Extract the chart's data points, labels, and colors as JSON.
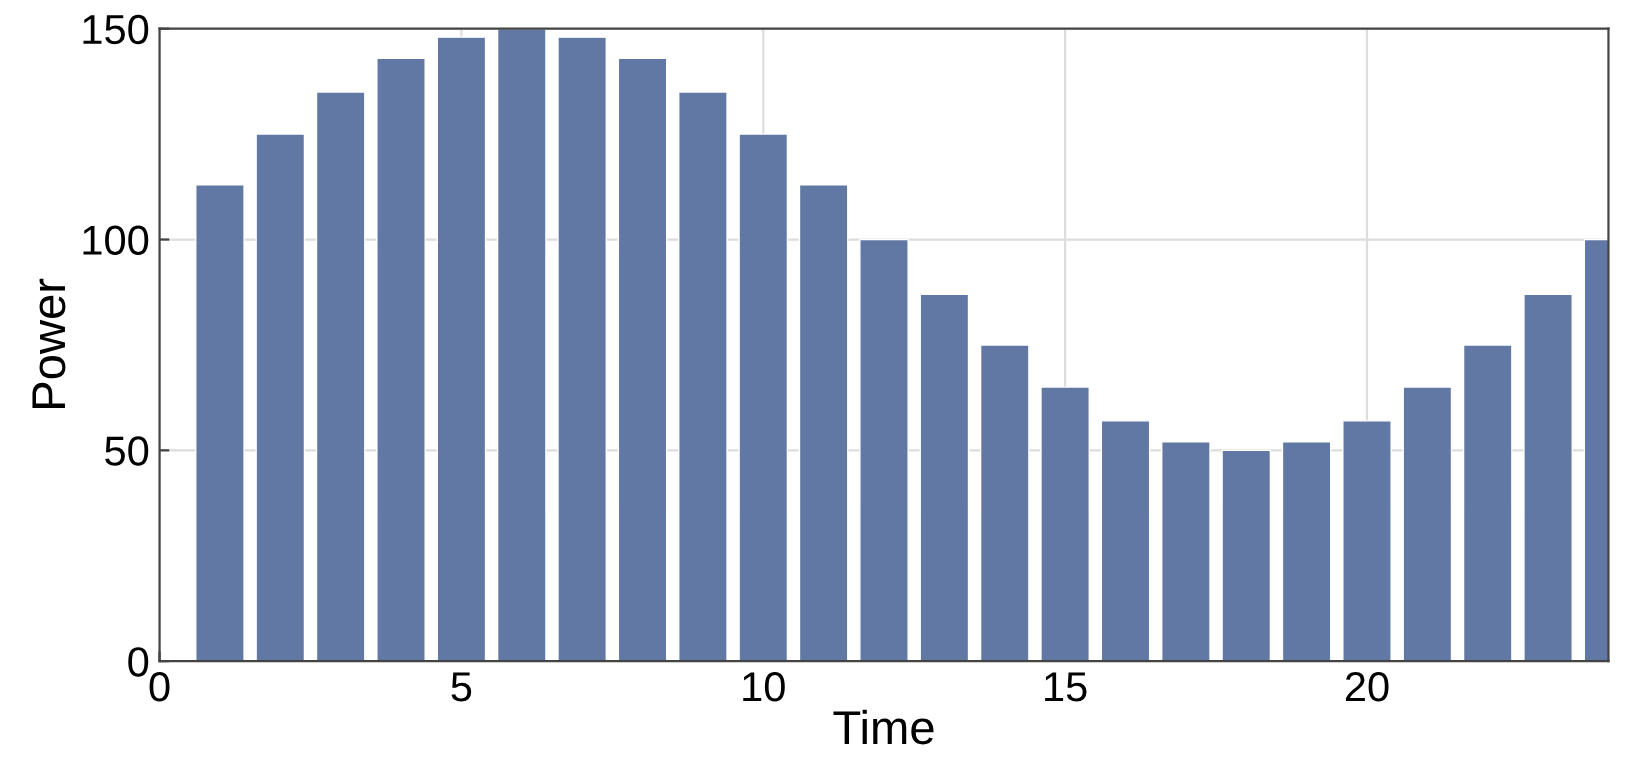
{
  "chart_data": {
    "type": "bar",
    "xlabel": "Time",
    "ylabel": "Power",
    "x": [
      1,
      2,
      3,
      4,
      5,
      6,
      7,
      8,
      9,
      10,
      11,
      12,
      13,
      14,
      15,
      16,
      17,
      18,
      19,
      20,
      21,
      22,
      23,
      24
    ],
    "values": [
      113,
      125,
      135,
      143,
      148,
      150,
      148,
      143,
      135,
      125,
      113,
      100,
      87,
      75,
      65,
      57,
      52,
      50,
      52,
      57,
      65,
      75,
      87,
      100
    ],
    "color": "#6278a4",
    "xlim": [
      0,
      24
    ],
    "xticks": [
      0,
      5,
      10,
      15,
      20
    ],
    "ylim": [
      0,
      150
    ],
    "yticks": [
      0,
      50,
      100,
      150
    ],
    "grid": true
  }
}
